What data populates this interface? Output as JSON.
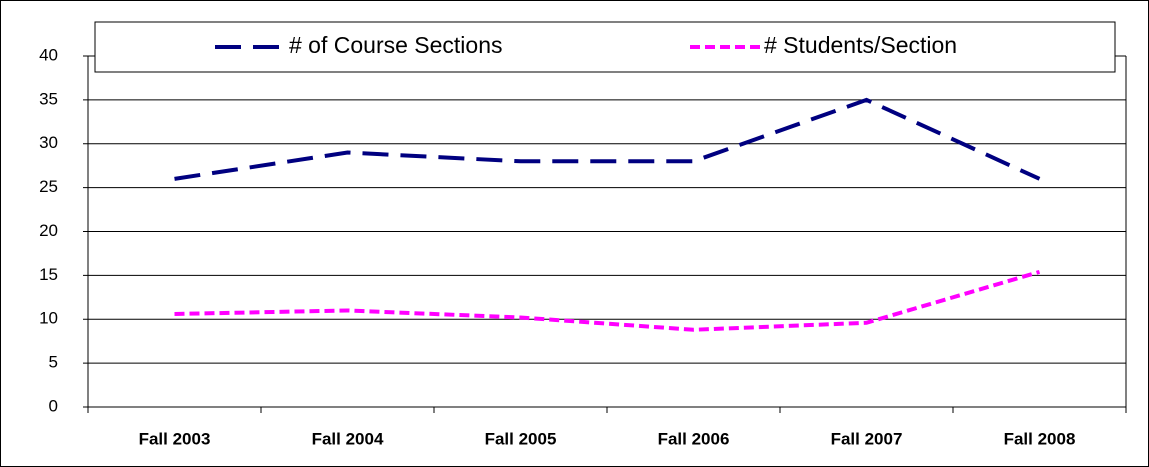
{
  "chart_data": {
    "type": "line",
    "categories": [
      "Fall 2003",
      "Fall 2004",
      "Fall 2005",
      "Fall 2006",
      "Fall 2007",
      "Fall 2008"
    ],
    "series": [
      {
        "name": "# of Course Sections",
        "color": "#000080",
        "dash": "long",
        "values": [
          26,
          29,
          28,
          28,
          35,
          26
        ]
      },
      {
        "name": "# Students/Section",
        "color": "#ff00ff",
        "dash": "short",
        "values": [
          10.6,
          11,
          10.2,
          8.8,
          9.6,
          15.4
        ]
      }
    ],
    "ylim": [
      0,
      40
    ],
    "yticks": [
      0,
      5,
      10,
      15,
      20,
      25,
      30,
      35,
      40
    ],
    "grid": true,
    "legend": "top"
  }
}
